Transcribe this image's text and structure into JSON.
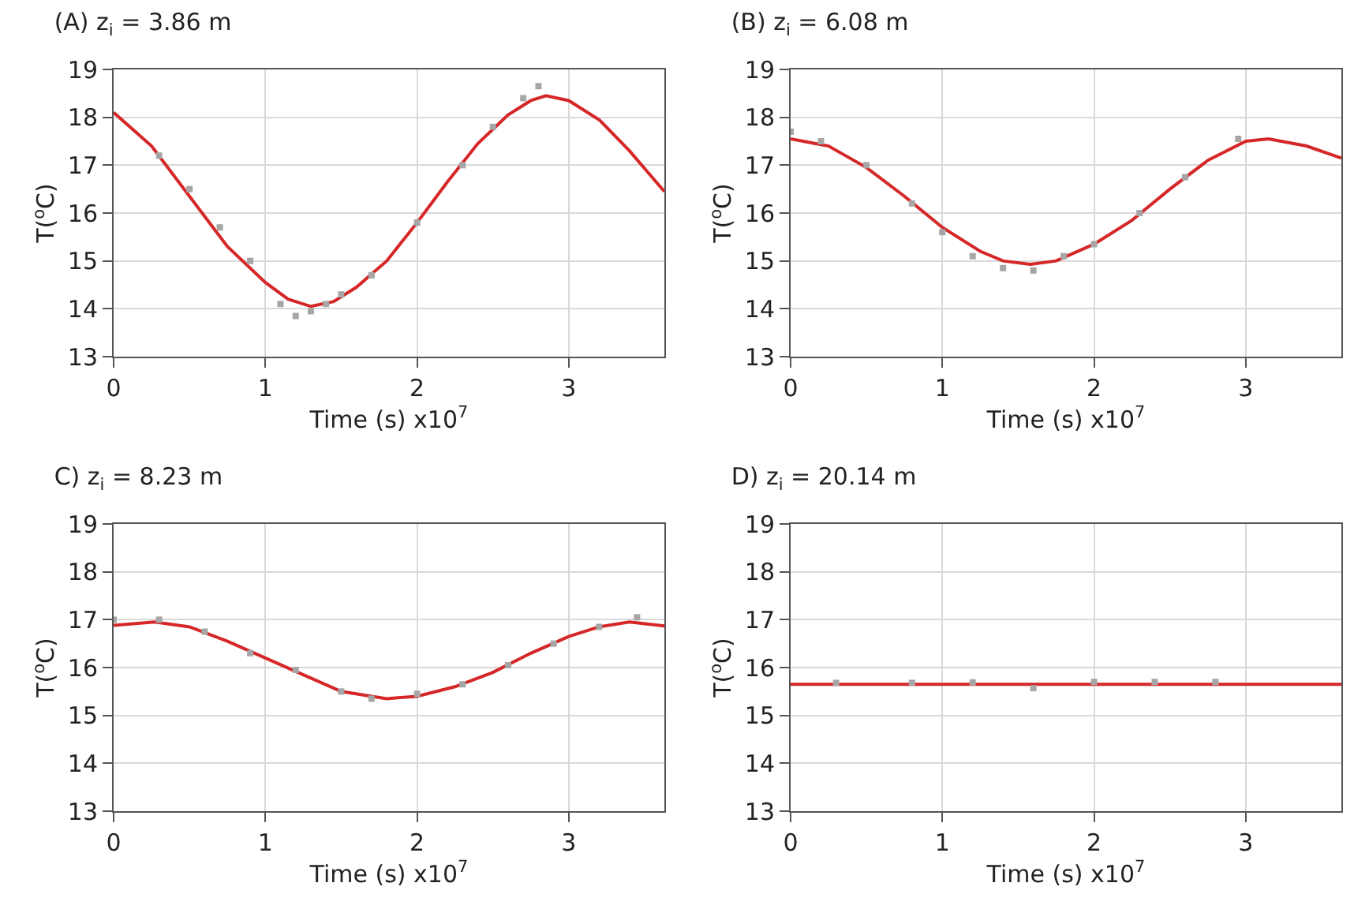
{
  "chart_data": [
    {
      "type": "line",
      "title": "(A) z$_{i}$ = 3.86 m",
      "xlabel": "Time (s) x10$^{7}$",
      "ylabel": "T($^{o}$C)",
      "xlim": [
        0,
        3.63
      ],
      "xticks": [
        0,
        1,
        2,
        3
      ],
      "ylim": [
        13,
        19
      ],
      "yticks": [
        13,
        14,
        15,
        16,
        17,
        18,
        19
      ],
      "grid": true,
      "marker": "none",
      "line_style": "solid",
      "series": [
        {
          "type": "scatter",
          "marker": "square",
          "color": "#a6a6a6",
          "x": [
            0.3,
            0.5,
            0.7,
            0.9,
            1.1,
            1.2,
            1.3,
            1.4,
            1.5,
            1.7,
            2.0,
            2.3,
            2.5,
            2.7,
            2.8
          ],
          "values": [
            17.2,
            16.5,
            15.7,
            15.0,
            14.1,
            13.85,
            13.95,
            14.1,
            14.3,
            14.7,
            15.8,
            17.0,
            17.8,
            18.4,
            18.65
          ]
        },
        {
          "color": "#d62728",
          "x": [
            0,
            0.25,
            0.5,
            0.75,
            1.0,
            1.15,
            1.3,
            1.45,
            1.6,
            1.8,
            2.0,
            2.2,
            2.4,
            2.6,
            2.75,
            2.85,
            3.0,
            3.2,
            3.4,
            3.63
          ],
          "values": [
            18.1,
            17.4,
            16.35,
            15.3,
            14.55,
            14.2,
            14.05,
            14.15,
            14.45,
            15.0,
            15.8,
            16.65,
            17.45,
            18.05,
            18.35,
            18.45,
            18.35,
            17.95,
            17.3,
            16.45
          ]
        }
      ]
    },
    {
      "type": "line",
      "title": "(B) z$_{i}$ = 6.08 m",
      "xlabel": "Time (s) x10$^{7}$",
      "ylabel": "T($^{o}$C)",
      "xlim": [
        0,
        3.63
      ],
      "xticks": [
        0,
        1,
        2,
        3
      ],
      "ylim": [
        13,
        19
      ],
      "yticks": [
        13,
        14,
        15,
        16,
        17,
        18,
        19
      ],
      "grid": true,
      "marker": "none",
      "line_style": "solid",
      "series": [
        {
          "type": "scatter",
          "marker": "square",
          "color": "#a6a6a6",
          "x": [
            0,
            0.2,
            0.5,
            0.8,
            1.0,
            1.2,
            1.4,
            1.6,
            1.8,
            2.0,
            2.3,
            2.6,
            2.95
          ],
          "values": [
            17.7,
            17.5,
            17.0,
            16.2,
            15.6,
            15.1,
            14.85,
            14.8,
            15.1,
            15.35,
            16.0,
            16.75,
            17.55
          ]
        },
        {
          "color": "#d62728",
          "x": [
            0,
            0.25,
            0.5,
            0.75,
            1.0,
            1.25,
            1.4,
            1.58,
            1.75,
            2.0,
            2.25,
            2.5,
            2.75,
            3.0,
            3.15,
            3.4,
            3.63
          ],
          "values": [
            17.55,
            17.4,
            16.95,
            16.35,
            15.7,
            15.2,
            15.0,
            14.93,
            15.0,
            15.35,
            15.85,
            16.5,
            17.1,
            17.5,
            17.55,
            17.4,
            17.15
          ]
        }
      ]
    },
    {
      "type": "line",
      "title": "C) z$_{i}$ = 8.23 m",
      "xlabel": "Time (s) x10$^{7}$",
      "ylabel": "T($^{o}$C)",
      "xlim": [
        0,
        3.63
      ],
      "xticks": [
        0,
        1,
        2,
        3
      ],
      "ylim": [
        13,
        19
      ],
      "yticks": [
        13,
        14,
        15,
        16,
        17,
        18,
        19
      ],
      "grid": true,
      "marker": "none",
      "line_style": "solid",
      "series": [
        {
          "type": "scatter",
          "marker": "square",
          "color": "#a6a6a6",
          "x": [
            0,
            0.3,
            0.6,
            0.9,
            1.2,
            1.5,
            1.7,
            2.0,
            2.3,
            2.6,
            2.9,
            3.2,
            3.45
          ],
          "values": [
            17.0,
            17.0,
            16.75,
            16.3,
            15.95,
            15.5,
            15.35,
            15.45,
            15.65,
            16.05,
            16.5,
            16.85,
            17.05
          ]
        },
        {
          "color": "#d62728",
          "x": [
            0,
            0.27,
            0.5,
            0.75,
            1.0,
            1.25,
            1.5,
            1.8,
            2.0,
            2.25,
            2.5,
            2.75,
            3.0,
            3.2,
            3.4,
            3.63
          ],
          "values": [
            16.88,
            16.95,
            16.85,
            16.55,
            16.2,
            15.85,
            15.5,
            15.35,
            15.4,
            15.6,
            15.9,
            16.3,
            16.65,
            16.85,
            16.95,
            16.87
          ]
        }
      ]
    },
    {
      "type": "line",
      "title": "D) z$_{i}$ = 20.14 m",
      "xlabel": "Time (s) x10$^{7}$",
      "ylabel": "T($^{o}$C)",
      "xlim": [
        0,
        3.63
      ],
      "xticks": [
        0,
        1,
        2,
        3
      ],
      "ylim": [
        13,
        19
      ],
      "yticks": [
        13,
        14,
        15,
        16,
        17,
        18,
        19
      ],
      "grid": true,
      "marker": "none",
      "line_style": "solid",
      "series": [
        {
          "type": "scatter",
          "marker": "square",
          "color": "#a6a6a6",
          "x": [
            0.3,
            0.8,
            1.2,
            1.6,
            2.0,
            2.4,
            2.8
          ],
          "values": [
            15.68,
            15.68,
            15.69,
            15.57,
            15.7,
            15.7,
            15.7
          ]
        },
        {
          "color": "#d62728",
          "x": [
            0,
            3.63
          ],
          "values": [
            15.65,
            15.65
          ]
        }
      ]
    }
  ]
}
